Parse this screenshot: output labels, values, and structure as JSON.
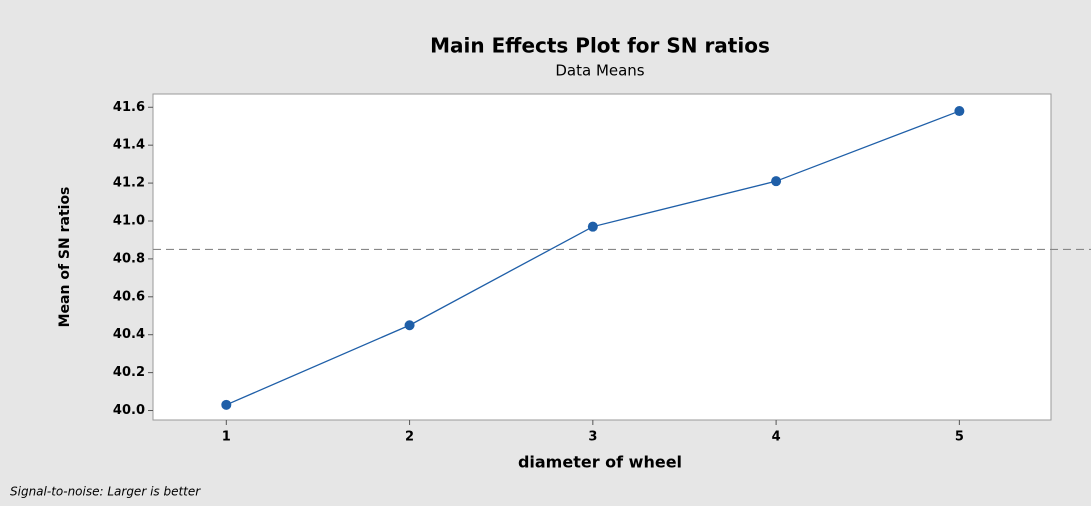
{
  "chart_data": {
    "type": "line",
    "title": "Main Effects Plot for SN ratios",
    "subtitle": "Data Means",
    "x_label": "diameter of wheel",
    "y_label": "Mean of SN ratios",
    "footnote": "Signal-to-noise: Larger is better",
    "x": [
      1,
      2,
      3,
      4,
      5
    ],
    "series": [
      {
        "name": "diameter of wheel",
        "color": "#1f5fa8",
        "values": [
          40.03,
          40.45,
          40.97,
          41.21,
          41.58
        ]
      }
    ],
    "reference_line": 40.85,
    "xlim": [
      0.6,
      5.5
    ],
    "xticks": [
      1,
      2,
      3,
      4,
      5
    ],
    "ylim": [
      39.95,
      41.67
    ],
    "yticks": [
      {
        "value": 40,
        "label": "40.0"
      },
      40.2,
      40.4,
      40.6,
      40.8,
      {
        "value": 41,
        "label": "41.0"
      },
      41.2,
      41.4,
      41.6
    ]
  }
}
